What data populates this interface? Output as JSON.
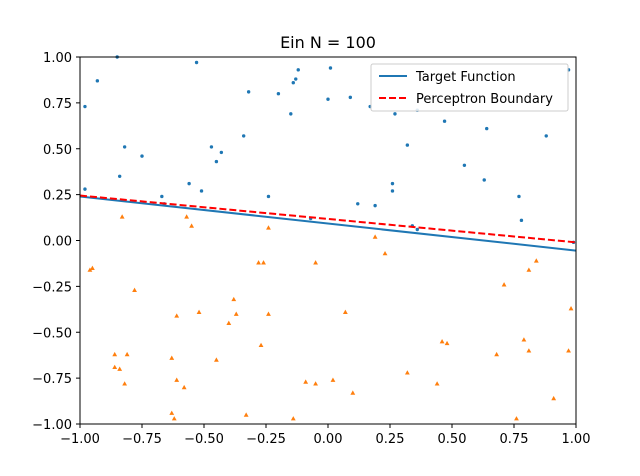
{
  "chart_data": {
    "type": "scatter",
    "title": "Ein N = 100",
    "xlabel": "",
    "ylabel": "",
    "xlim": [
      -1.0,
      1.0
    ],
    "ylim": [
      -1.0,
      1.0
    ],
    "xticks": [
      "−1.00",
      "−0.75",
      "−0.50",
      "−0.25",
      "0.00",
      "0.25",
      "0.50",
      "0.75",
      "1.00"
    ],
    "yticks": [
      "−1.00",
      "−0.75",
      "−0.50",
      "−0.25",
      "0.00",
      "0.25",
      "0.50",
      "0.75",
      "1.00"
    ],
    "grid": false,
    "legend_position": "upper-right",
    "lines": [
      {
        "name": "Target Function",
        "color": "#1f77b4",
        "style": "solid",
        "x": [
          -1.0,
          1.0
        ],
        "y": [
          0.24,
          -0.055
        ]
      },
      {
        "name": "Perceptron Boundary",
        "color": "#ff0000",
        "style": "dashed",
        "x": [
          -1.0,
          1.0
        ],
        "y": [
          0.245,
          -0.01
        ]
      }
    ],
    "scatter_series": [
      {
        "marker": "circle",
        "color": "#1f77b4",
        "points": [
          [
            -0.85,
            1.0
          ],
          [
            -0.53,
            0.97
          ],
          [
            -0.93,
            0.87
          ],
          [
            -0.98,
            0.73
          ],
          [
            -0.32,
            0.81
          ],
          [
            -0.2,
            0.8
          ],
          [
            -0.12,
            0.93
          ],
          [
            -0.13,
            0.88
          ],
          [
            -0.14,
            0.86
          ],
          [
            -0.15,
            0.69
          ],
          [
            0.0,
            0.77
          ],
          [
            0.01,
            0.94
          ],
          [
            0.09,
            0.78
          ],
          [
            0.17,
            0.73
          ],
          [
            0.27,
            0.69
          ],
          [
            0.36,
            0.71
          ],
          [
            0.47,
            0.65
          ],
          [
            0.64,
            0.61
          ],
          [
            0.88,
            0.57
          ],
          [
            0.97,
            0.93
          ],
          [
            -0.82,
            0.51
          ],
          [
            -0.75,
            0.46
          ],
          [
            -0.47,
            0.51
          ],
          [
            -0.43,
            0.48
          ],
          [
            -0.34,
            0.57
          ],
          [
            -0.45,
            0.43
          ],
          [
            -0.84,
            0.35
          ],
          [
            -0.56,
            0.31
          ],
          [
            -0.51,
            0.27
          ],
          [
            -0.98,
            0.28
          ],
          [
            -0.67,
            0.24
          ],
          [
            -0.24,
            0.24
          ],
          [
            -0.66,
            0.2
          ],
          [
            0.12,
            0.2
          ],
          [
            0.19,
            0.19
          ],
          [
            0.26,
            0.31
          ],
          [
            0.26,
            0.27
          ],
          [
            0.32,
            0.52
          ],
          [
            0.55,
            0.41
          ],
          [
            0.63,
            0.33
          ],
          [
            0.77,
            0.24
          ],
          [
            0.78,
            0.11
          ],
          [
            0.34,
            0.08
          ],
          [
            -0.07,
            0.12
          ],
          [
            0.36,
            0.06
          ],
          [
            0.99,
            -0.01
          ]
        ]
      },
      {
        "marker": "triangle",
        "color": "#ff7f0e",
        "points": [
          [
            -0.83,
            0.13
          ],
          [
            -0.57,
            0.13
          ],
          [
            -0.55,
            0.08
          ],
          [
            -0.24,
            0.07
          ],
          [
            -0.95,
            -0.15
          ],
          [
            -0.96,
            -0.16
          ],
          [
            -0.78,
            -0.27
          ],
          [
            -0.28,
            -0.12
          ],
          [
            -0.26,
            -0.12
          ],
          [
            -0.05,
            -0.12
          ],
          [
            0.19,
            0.02
          ],
          [
            0.23,
            -0.07
          ],
          [
            0.71,
            -0.24
          ],
          [
            0.81,
            -0.16
          ],
          [
            0.84,
            -0.11
          ],
          [
            -0.38,
            -0.32
          ],
          [
            -0.37,
            -0.4
          ],
          [
            -0.4,
            -0.45
          ],
          [
            -0.52,
            -0.39
          ],
          [
            -0.61,
            -0.41
          ],
          [
            -0.24,
            -0.4
          ],
          [
            0.07,
            -0.39
          ],
          [
            -0.45,
            -0.65
          ],
          [
            -0.27,
            -0.57
          ],
          [
            -0.63,
            -0.64
          ],
          [
            -0.86,
            -0.62
          ],
          [
            -0.81,
            -0.62
          ],
          [
            -0.86,
            -0.69
          ],
          [
            -0.84,
            -0.7
          ],
          [
            -0.82,
            -0.78
          ],
          [
            -0.61,
            -0.76
          ],
          [
            -0.58,
            -0.8
          ],
          [
            -0.09,
            -0.77
          ],
          [
            -0.05,
            -0.78
          ],
          [
            0.02,
            -0.76
          ],
          [
            0.1,
            -0.83
          ],
          [
            0.32,
            -0.72
          ],
          [
            0.44,
            -0.78
          ],
          [
            0.46,
            -0.55
          ],
          [
            0.48,
            -0.56
          ],
          [
            0.68,
            -0.62
          ],
          [
            0.79,
            -0.54
          ],
          [
            0.81,
            -0.6
          ],
          [
            0.97,
            -0.6
          ],
          [
            0.98,
            -0.37
          ],
          [
            -0.63,
            -0.94
          ],
          [
            -0.62,
            -0.97
          ],
          [
            -0.33,
            -0.95
          ],
          [
            -0.14,
            -0.97
          ],
          [
            0.76,
            -0.97
          ],
          [
            0.91,
            -0.86
          ]
        ]
      }
    ]
  }
}
